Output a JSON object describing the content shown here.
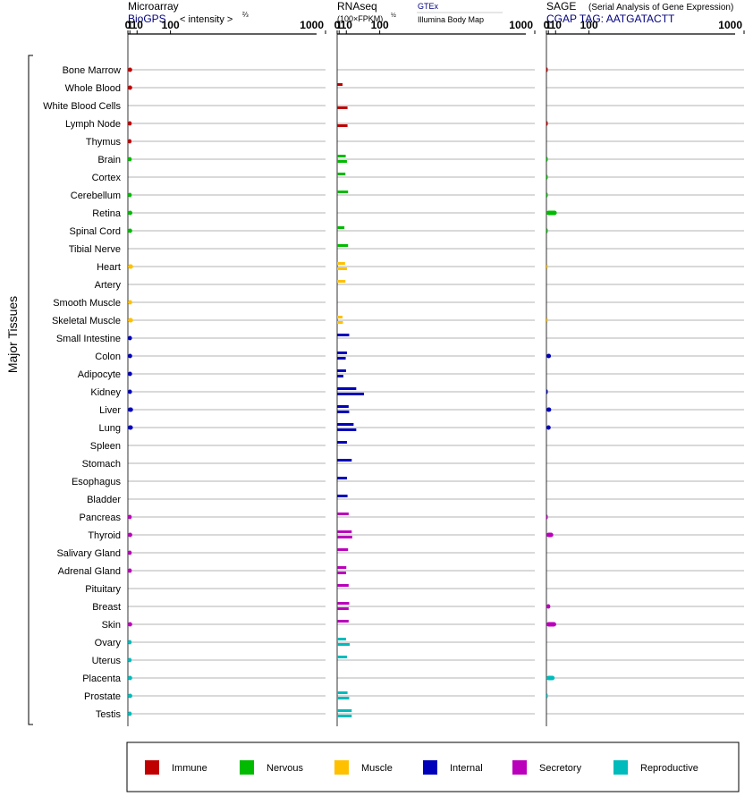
{
  "panels": [
    {
      "id": "microarray",
      "title": "Microarray",
      "source": "BioGPS",
      "scale_label": "< intensity >",
      "scale_power": "⅔",
      "ticks": [
        "0",
        "1",
        "10",
        "100",
        "1000"
      ]
    },
    {
      "id": "rnaseq",
      "title": "RNAseq",
      "scale_label": "(100×FPKM)",
      "scale_power": "½",
      "source_1": "GTEx",
      "source_2": "Illumina Body Map",
      "ticks": [
        "0",
        "1",
        "10",
        "100",
        "1000"
      ]
    },
    {
      "id": "sage",
      "title": "SAGE",
      "subtitle": "(Serial Analysis of Gene Expression)",
      "tag_line": "CGAP TAG: AATGATACTT",
      "ticks": [
        "0",
        "1",
        "10",
        "100",
        "1000"
      ]
    }
  ],
  "y_group_label": "Major Tissues",
  "categories": {
    "Immune": "#c00000",
    "Nervous": "#00bb00",
    "Muscle": "#ffc000",
    "Internal": "#0000bb",
    "Secretory": "#bb00bb",
    "Reproductive": "#00bbbb"
  },
  "legend": [
    {
      "label": "Immune",
      "color": "#c00000"
    },
    {
      "label": "Nervous",
      "color": "#00bb00"
    },
    {
      "label": "Muscle",
      "color": "#ffc000"
    },
    {
      "label": "Internal",
      "color": "#0000bb"
    },
    {
      "label": "Secretory",
      "color": "#bb00bb"
    },
    {
      "label": "Reproductive",
      "color": "#00bbbb"
    }
  ],
  "chart_data": {
    "type": "bar",
    "orientation": "horizontal",
    "x_scale": "power",
    "xlim": [
      0,
      1000
    ],
    "tissues": [
      {
        "name": "Bone Marrow",
        "category": "Immune",
        "microarray": 3.2,
        "gtex": null,
        "ibm": null,
        "sage": 0.05
      },
      {
        "name": "Whole Blood",
        "category": "Immune",
        "microarray": 3.2,
        "gtex": 4.5,
        "ibm": null,
        "sage": null
      },
      {
        "name": "White Blood Cells",
        "category": "Immune",
        "microarray": null,
        "gtex": null,
        "ibm": 12,
        "sage": null
      },
      {
        "name": "Lymph Node",
        "category": "Immune",
        "microarray": 2.7,
        "gtex": null,
        "ibm": 12,
        "sage": 0.05
      },
      {
        "name": "Thymus",
        "category": "Immune",
        "microarray": 2.5,
        "gtex": null,
        "ibm": null,
        "sage": null
      },
      {
        "name": "Brain",
        "category": "Nervous",
        "microarray": 2.7,
        "gtex": 9,
        "ibm": 11,
        "sage": 0.02
      },
      {
        "name": "Cortex",
        "category": "Nervous",
        "microarray": null,
        "gtex": 8.5,
        "ibm": null,
        "sage": 0.02
      },
      {
        "name": "Cerebellum",
        "category": "Nervous",
        "microarray": 2.7,
        "gtex": 13,
        "ibm": null,
        "sage": 0.02
      },
      {
        "name": "Retina",
        "category": "Nervous",
        "microarray": 3.4,
        "gtex": null,
        "ibm": null,
        "sage": 12
      },
      {
        "name": "Spinal Cord",
        "category": "Nervous",
        "microarray": 3.2,
        "gtex": 7,
        "ibm": null,
        "sage": 0.02
      },
      {
        "name": "Tibial Nerve",
        "category": "Nervous",
        "microarray": null,
        "gtex": 13,
        "ibm": null,
        "sage": null
      },
      {
        "name": "Heart",
        "category": "Muscle",
        "microarray": 4.2,
        "gtex": 8,
        "ibm": 11,
        "sage": 0.01
      },
      {
        "name": "Artery",
        "category": "Muscle",
        "microarray": null,
        "gtex": 8.5,
        "ibm": null,
        "sage": null
      },
      {
        "name": "Smooth Muscle",
        "category": "Muscle",
        "microarray": 3.2,
        "gtex": null,
        "ibm": null,
        "sage": null
      },
      {
        "name": "Skeletal Muscle",
        "category": "Muscle",
        "microarray": 4.2,
        "gtex": 4.5,
        "ibm": 5,
        "sage": 0.01
      },
      {
        "name": "Small Intestine",
        "category": "Internal",
        "microarray": 3.0,
        "gtex": 15,
        "ibm": null,
        "sage": null
      },
      {
        "name": "Colon",
        "category": "Internal",
        "microarray": 3.2,
        "gtex": 11,
        "ibm": 9,
        "sage": 3.5
      },
      {
        "name": "Adipocyte",
        "category": "Internal",
        "microarray": 3.1,
        "gtex": 9.5,
        "ibm": 5.5,
        "sage": null
      },
      {
        "name": "Kidney",
        "category": "Internal",
        "microarray": 3.0,
        "gtex": 30,
        "ibm": 50,
        "sage": 0.05
      },
      {
        "name": "Liver",
        "category": "Internal",
        "microarray": 4.2,
        "gtex": 14,
        "ibm": 15,
        "sage": 3.8
      },
      {
        "name": "Lung",
        "category": "Internal",
        "microarray": 4.0,
        "gtex": 24,
        "ibm": 30,
        "sage": 3.2
      },
      {
        "name": "Spleen",
        "category": "Internal",
        "microarray": null,
        "gtex": 11,
        "ibm": null,
        "sage": null
      },
      {
        "name": "Stomach",
        "category": "Internal",
        "microarray": null,
        "gtex": 20,
        "ibm": null,
        "sage": null
      },
      {
        "name": "Esophagus",
        "category": "Internal",
        "microarray": null,
        "gtex": 11,
        "ibm": null,
        "sage": null
      },
      {
        "name": "Bladder",
        "category": "Internal",
        "microarray": null,
        "gtex": 12,
        "ibm": null,
        "sage": null
      },
      {
        "name": "Pancreas",
        "category": "Secretory",
        "microarray": 2.7,
        "gtex": 14,
        "ibm": null,
        "sage": 0.05
      },
      {
        "name": "Thyroid",
        "category": "Secretory",
        "microarray": 3.3,
        "gtex": 20,
        "ibm": 21,
        "sage": 6.5
      },
      {
        "name": "Salivary Gland",
        "category": "Secretory",
        "microarray": 2.7,
        "gtex": 13,
        "ibm": null,
        "sage": null
      },
      {
        "name": "Adrenal Gland",
        "category": "Secretory",
        "microarray": 2.8,
        "gtex": 10,
        "ibm": 9.5,
        "sage": null
      },
      {
        "name": "Pituitary",
        "category": "Secretory",
        "microarray": null,
        "gtex": 14,
        "ibm": null,
        "sage": null
      },
      {
        "name": "Breast",
        "category": "Secretory",
        "microarray": null,
        "gtex": 15,
        "ibm": 14,
        "sage": 2.8
      },
      {
        "name": "Skin",
        "category": "Secretory",
        "microarray": 3.2,
        "gtex": 14,
        "ibm": null,
        "sage": 11
      },
      {
        "name": "Ovary",
        "category": "Reproductive",
        "microarray": 2.6,
        "gtex": 9.5,
        "ibm": 16,
        "sage": null
      },
      {
        "name": "Uterus",
        "category": "Reproductive",
        "microarray": 2.6,
        "gtex": 11,
        "ibm": null,
        "sage": null
      },
      {
        "name": "Placenta",
        "category": "Reproductive",
        "microarray": 3.2,
        "gtex": null,
        "ibm": null,
        "sage": 8.5
      },
      {
        "name": "Prostate",
        "category": "Reproductive",
        "microarray": 3.3,
        "gtex": 12,
        "ibm": 15,
        "sage": 0.02
      },
      {
        "name": "Testis",
        "category": "Reproductive",
        "microarray": 2.7,
        "gtex": 20,
        "ibm": 20,
        "sage": null
      }
    ]
  }
}
